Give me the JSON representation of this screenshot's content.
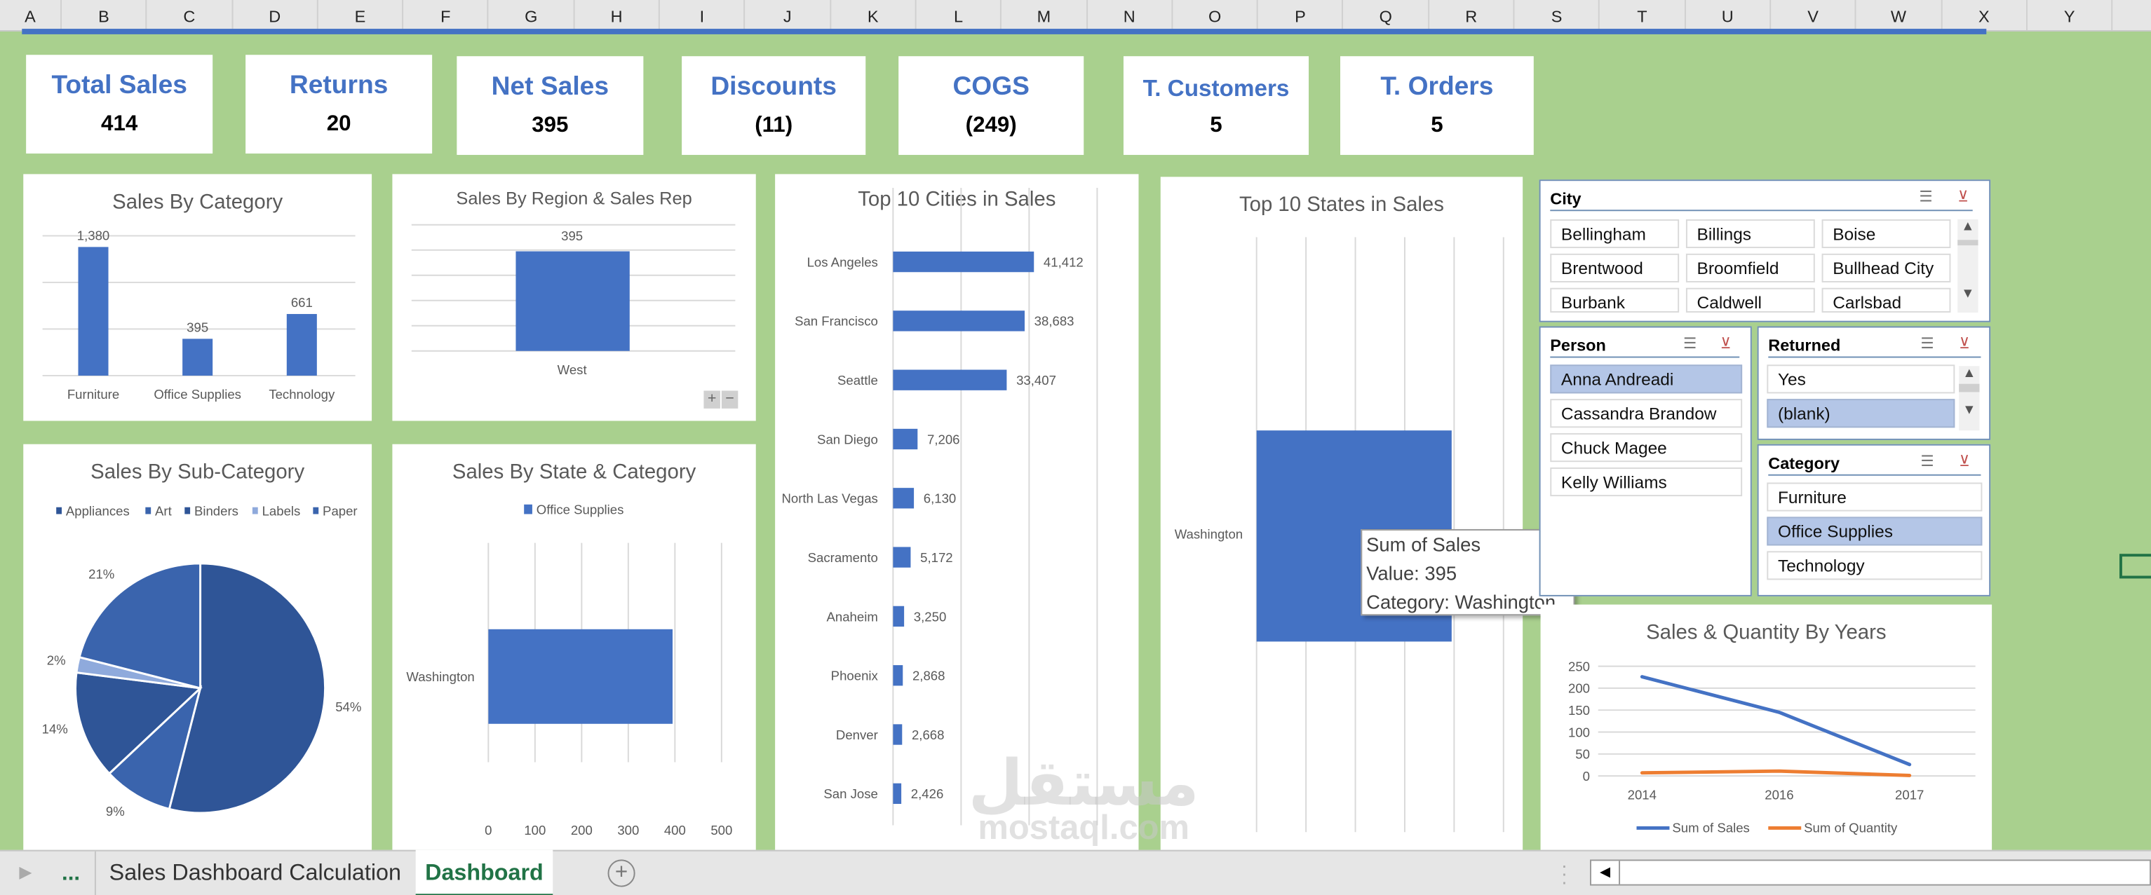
{
  "columns": [
    "A",
    "B",
    "C",
    "D",
    "E",
    "F",
    "G",
    "H",
    "I",
    "J",
    "K",
    "L",
    "M",
    "N",
    "O",
    "P",
    "Q",
    "R",
    "S",
    "T",
    "U",
    "V",
    "W",
    "X",
    "Y"
  ],
  "kpis": [
    {
      "title": "Total Sales",
      "value": "414"
    },
    {
      "title": "Returns",
      "value": "20"
    },
    {
      "title": "Net Sales",
      "value": "395"
    },
    {
      "title": "Discounts",
      "value": "(11)"
    },
    {
      "title": "COGS",
      "value": "(249)"
    },
    {
      "title": "T. Customers",
      "value": "5"
    },
    {
      "title": "T. Orders",
      "value": "5"
    }
  ],
  "colors": {
    "accent": "#4472c4",
    "background": "#a9d08e",
    "quantity": "#ed7d31",
    "selected": "#b4c6e7",
    "tab_active": "#217346"
  },
  "chart_data": [
    {
      "id": "category",
      "type": "bar",
      "title": "Sales By Category",
      "categories": [
        "Furniture",
        "Office Supplies",
        "Technology"
      ],
      "values": [
        1380,
        395,
        661
      ],
      "data_labels": [
        "1,380",
        "395",
        "661"
      ],
      "ylim": [
        0,
        1500
      ],
      "grid": true
    },
    {
      "id": "region",
      "type": "bar",
      "title": "Sales By Region & Sales Rep",
      "categories": [
        "West"
      ],
      "values": [
        395
      ],
      "data_labels": [
        "395"
      ],
      "ylim": [
        0,
        500
      ],
      "grid": true,
      "zoom_buttons": [
        "+",
        "−"
      ]
    },
    {
      "id": "subcategory",
      "type": "pie",
      "title": "Sales By Sub-Category",
      "categories": [
        "Appliances",
        "Art",
        "Binders",
        "Labels",
        "Paper"
      ],
      "values": [
        54,
        9,
        14,
        2,
        21
      ],
      "data_labels": [
        "54%",
        "9%",
        "14%",
        "2%",
        "21%"
      ],
      "colors": [
        "#2f5597",
        "#3a64ad",
        "#2f5597",
        "#8faadc",
        "#3a64ad"
      ],
      "legend": "top"
    },
    {
      "id": "state_category",
      "type": "bar",
      "orientation": "horizontal",
      "title": "Sales By State & Category",
      "categories": [
        "Washington"
      ],
      "series": [
        {
          "name": "Office Supplies",
          "values": [
            395
          ]
        }
      ],
      "xlim": [
        0,
        500
      ],
      "xticks": [
        "0",
        "100",
        "200",
        "300",
        "400",
        "500"
      ],
      "legend": "top",
      "grid": true
    },
    {
      "id": "cities",
      "type": "bar",
      "orientation": "horizontal",
      "title": "Top 10 Cities in Sales",
      "categories": [
        "Los Angeles",
        "San Francisco",
        "Seattle",
        "San Diego",
        "North Las Vegas",
        "Sacramento",
        "Anaheim",
        "Phoenix",
        "Denver",
        "San Jose"
      ],
      "values": [
        41412,
        38683,
        33407,
        7206,
        6130,
        5172,
        3250,
        2868,
        2668,
        2426
      ],
      "data_labels": [
        "41,412",
        "38,683",
        "33,407",
        "7,206",
        "6,130",
        "5,172",
        "3,250",
        "2,868",
        "2,668",
        "2,426"
      ],
      "xlim": [
        0,
        80000
      ],
      "grid": true
    },
    {
      "id": "states",
      "type": "bar",
      "orientation": "horizontal",
      "title": "Top 10 States in Sales",
      "categories": [
        "Washington"
      ],
      "values": [
        395
      ],
      "xlim": [
        0,
        500
      ],
      "grid": true
    },
    {
      "id": "years",
      "type": "line",
      "title": "Sales & Quantity By Years",
      "categories": [
        "2014",
        "2016",
        "2017"
      ],
      "series": [
        {
          "name": "Sum of Sales",
          "values": [
            226,
            145,
            26
          ],
          "color": "#4472c4"
        },
        {
          "name": "Sum of Quantity",
          "values": [
            7,
            11,
            1
          ],
          "color": "#ed7d31"
        }
      ],
      "ylim": [
        0,
        250
      ],
      "yticks": [
        "250",
        "200",
        "150",
        "100",
        "50",
        "0"
      ],
      "legend": "bottom",
      "grid": true
    }
  ],
  "tooltip": {
    "line1": "Sum of Sales",
    "line2": "Value: 395",
    "line3": "Category: Washington"
  },
  "slicers": {
    "city": {
      "title": "City",
      "items": [
        {
          "label": "Bellingham",
          "selected": false
        },
        {
          "label": "Billings",
          "selected": false
        },
        {
          "label": "Boise",
          "selected": false
        },
        {
          "label": "Brentwood",
          "selected": false
        },
        {
          "label": "Broomfield",
          "selected": false
        },
        {
          "label": "Bullhead City",
          "selected": false
        },
        {
          "label": "Burbank",
          "selected": false
        },
        {
          "label": "Caldwell",
          "selected": false
        },
        {
          "label": "Carlsbad",
          "selected": false
        }
      ]
    },
    "person": {
      "title": "Person",
      "items": [
        {
          "label": "Anna Andreadi",
          "selected": true
        },
        {
          "label": "Cassandra Brandow",
          "selected": false
        },
        {
          "label": "Chuck Magee",
          "selected": false
        },
        {
          "label": "Kelly Williams",
          "selected": false
        }
      ]
    },
    "returned": {
      "title": "Returned",
      "items": [
        {
          "label": "Yes",
          "selected": false
        },
        {
          "label": "(blank)",
          "selected": true
        }
      ]
    },
    "category": {
      "title": "Category",
      "items": [
        {
          "label": "Furniture",
          "selected": false
        },
        {
          "label": "Office Supplies",
          "selected": true
        },
        {
          "label": "Technology",
          "selected": false
        }
      ]
    }
  },
  "icons": {
    "multiselect": "multi-select-icon",
    "clear_filter": "clear-filter-icon",
    "scroll_up": "scroll-up-icon",
    "scroll_down": "scroll-down-icon",
    "add_sheet": "plus-circle-icon"
  },
  "sheet_tabs": {
    "more": "...",
    "tabs": [
      {
        "label": "Sales Dashboard Calculation",
        "active": false
      },
      {
        "label": "Dashboard",
        "active": true
      }
    ]
  },
  "watermark": {
    "arabic": "مستقل",
    "latin": "mostaql.com"
  }
}
